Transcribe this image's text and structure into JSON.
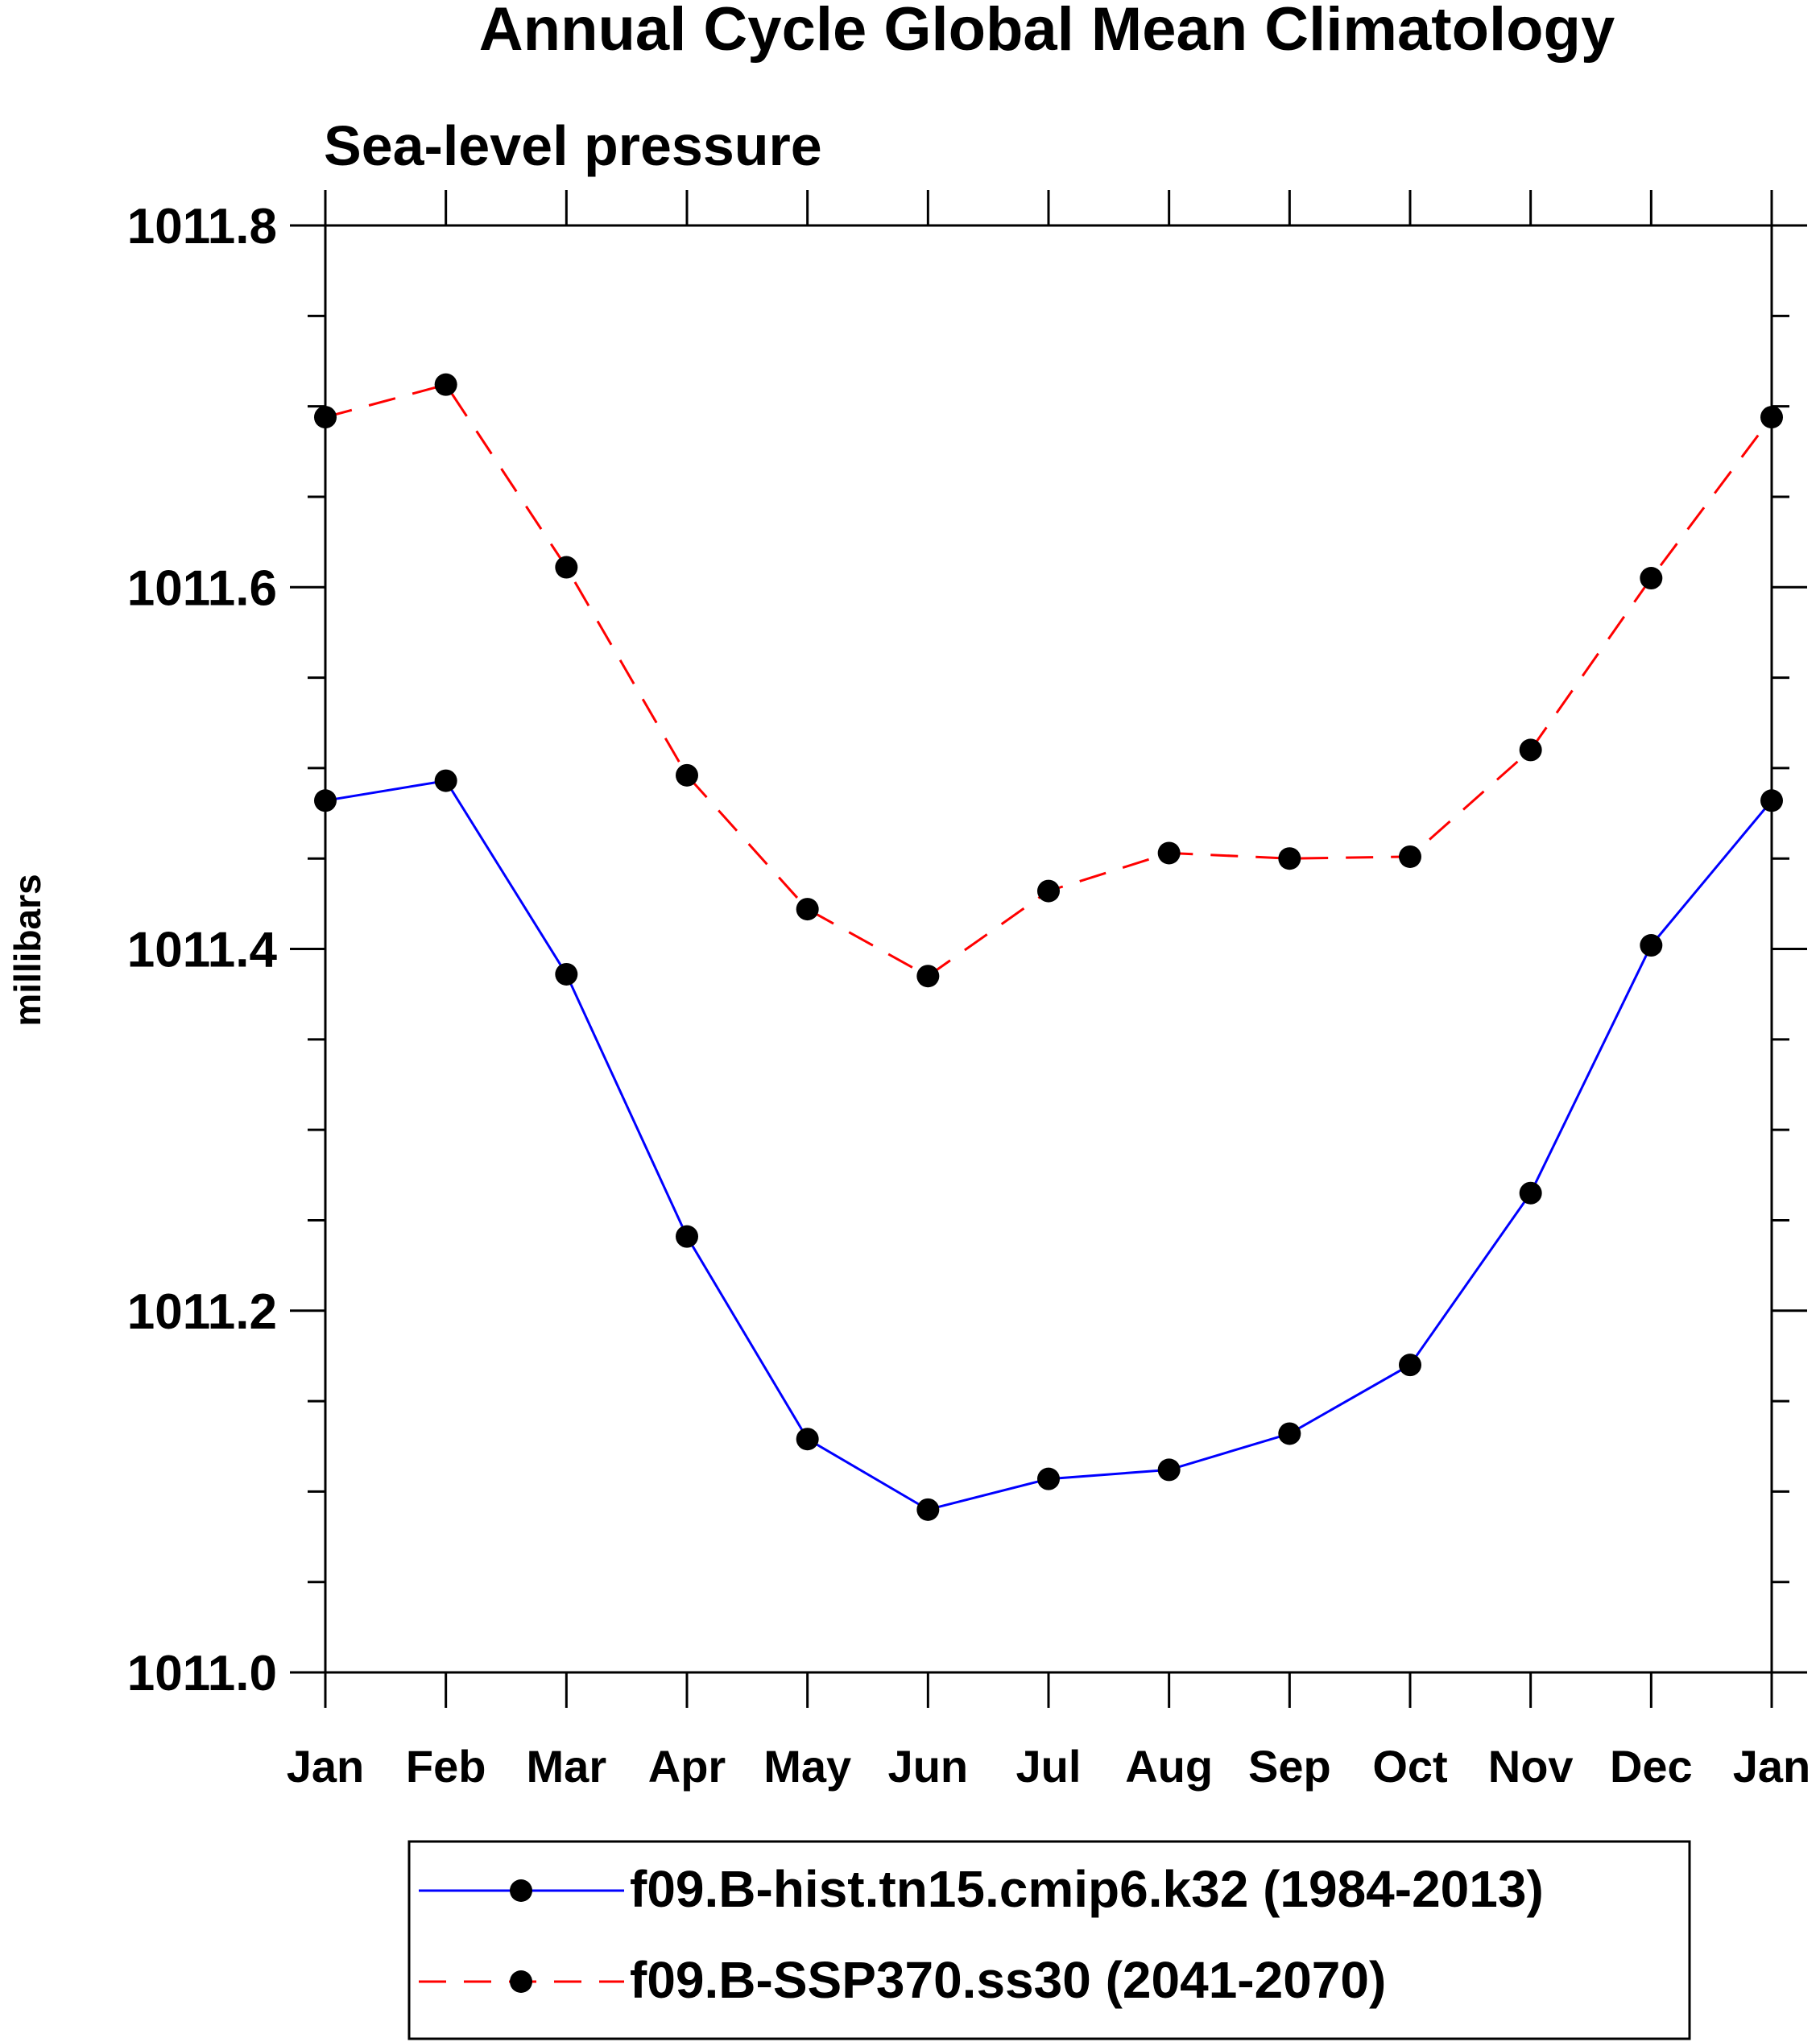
{
  "chart_data": {
    "type": "line",
    "title": "Annual Cycle Global Mean Climatology",
    "subtitle": "Sea-level pressure",
    "ylabel": "millibars",
    "xlabel": "",
    "categories": [
      "Jan",
      "Feb",
      "Mar",
      "Apr",
      "May",
      "Jun",
      "Jul",
      "Aug",
      "Sep",
      "Oct",
      "Nov",
      "Dec",
      "Jan"
    ],
    "ylim": [
      1011.0,
      1011.8
    ],
    "yticks": [
      {
        "value": 1011.0,
        "label": "1011.0"
      },
      {
        "value": 1011.2,
        "label": "1011.2"
      },
      {
        "value": 1011.4,
        "label": "1011.4"
      },
      {
        "value": 1011.6,
        "label": "1011.6"
      },
      {
        "value": 1011.8,
        "label": "1011.8"
      }
    ],
    "yminor_step": 0.05,
    "grid": false,
    "legend_position": "bottom",
    "series": [
      {
        "name": "f09.B-hist.tn15.cmip6.k32 (1984-2013)",
        "color": "#0000ff",
        "dash": "solid",
        "values": [
          1011.482,
          1011.493,
          1011.386,
          1011.241,
          1011.129,
          1011.09,
          1011.107,
          1011.112,
          1011.132,
          1011.17,
          1011.265,
          1011.402,
          1011.482
        ]
      },
      {
        "name": "f09.B-SSP370.ss30 (2041-2070)",
        "color": "#ff0000",
        "dash": "dashed",
        "values": [
          1011.694,
          1011.712,
          1011.611,
          1011.496,
          1011.422,
          1011.385,
          1011.432,
          1011.453,
          1011.45,
          1011.451,
          1011.51,
          1011.605,
          1011.694
        ]
      }
    ],
    "marker_color": "#000000"
  }
}
